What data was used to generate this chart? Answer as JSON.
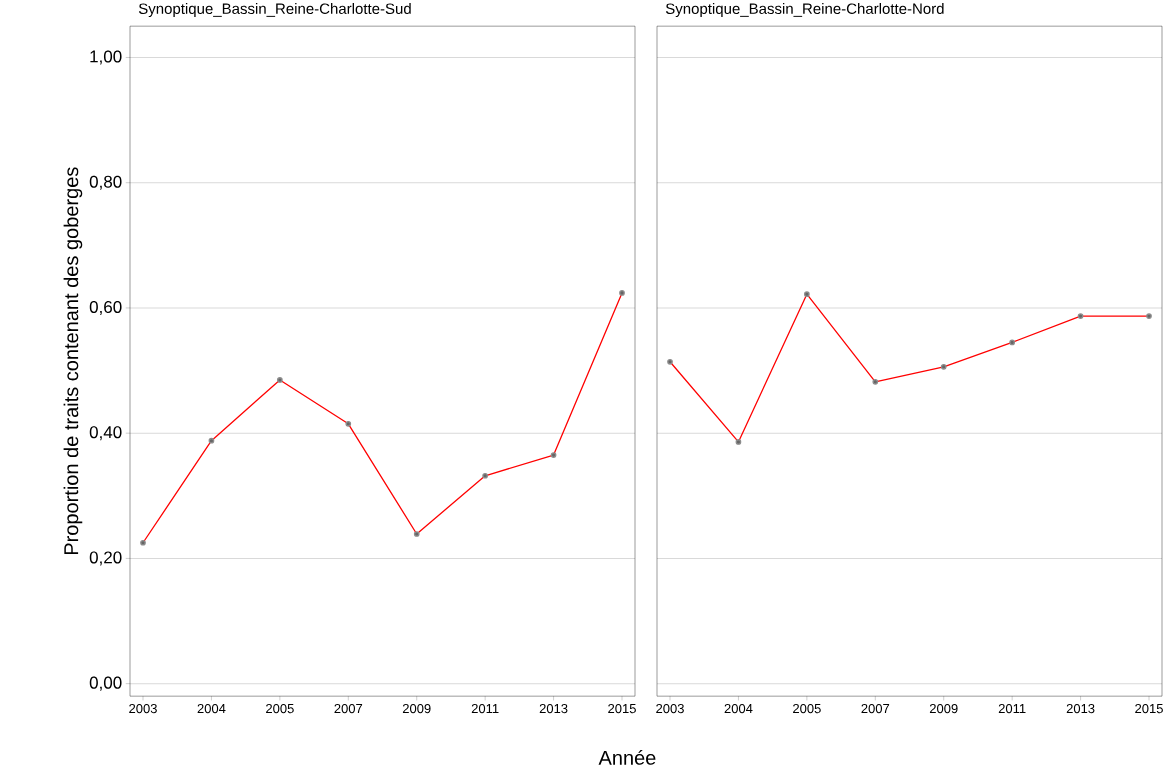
{
  "chart_data": [
    {
      "type": "line",
      "title": "Synoptique_Bassin_Reine-Charlotte-Sud",
      "ylabel": "Proportion de traits contenant des goberges",
      "xlabel": "Année",
      "categories": [
        "2003",
        "2004",
        "2005",
        "2007",
        "2009",
        "2011",
        "2013",
        "2015"
      ],
      "series": [
        {
          "color": "#ff0000",
          "values": [
            0.225,
            0.388,
            0.485,
            0.415,
            0.239,
            0.332,
            0.365,
            0.624
          ]
        }
      ],
      "ylim": [
        -0.02,
        1.05
      ],
      "yticks": [
        {
          "value": 0,
          "label": "0,00"
        },
        {
          "value": 0.2,
          "label": "0,20"
        },
        {
          "value": 0.4,
          "label": "0,40"
        },
        {
          "value": 0.6,
          "label": "0,60"
        },
        {
          "value": 0.8,
          "label": "0,80"
        },
        {
          "value": 1,
          "label": "1,00"
        }
      ],
      "grid": "y",
      "marker": "circle"
    },
    {
      "type": "line",
      "title": "Synoptique_Bassin_Reine-Charlotte-Nord",
      "categories": [
        "2003",
        "2004",
        "2005",
        "2007",
        "2009",
        "2011",
        "2013",
        "2015"
      ],
      "series": [
        {
          "color": "#ff0000",
          "values": [
            0.514,
            0.386,
            0.622,
            0.482,
            0.506,
            0.545,
            0.587,
            0.587
          ]
        }
      ],
      "ylim": [
        -0.02,
        1.05
      ],
      "yticks": [
        {
          "value": 0,
          "label": null
        },
        {
          "value": 0.2,
          "label": null
        },
        {
          "value": 0.4,
          "label": null
        },
        {
          "value": 0.6,
          "label": null
        },
        {
          "value": 0.8,
          "label": null
        },
        {
          "value": 1,
          "label": null
        }
      ],
      "grid": "y",
      "marker": "circle",
      "tick_labels": "x"
    }
  ]
}
